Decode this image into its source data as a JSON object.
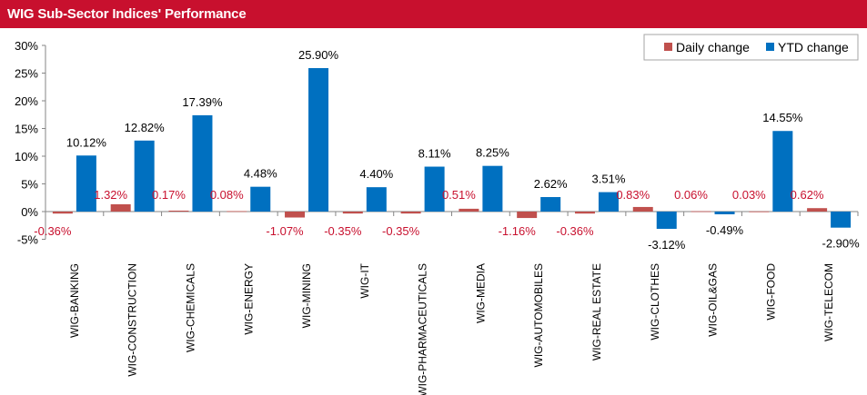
{
  "header": {
    "title": "WIG Sub-Sector Indices' Performance",
    "banner_color": "#c8102e"
  },
  "chart_data": {
    "type": "bar",
    "categories": [
      "WIG-BANKING",
      "WIG-CONSTRUCTION",
      "WIG-CHEMICALS",
      "WIG-ENERGY",
      "WIG-MINING",
      "WIG-IT",
      "WIG-PHARMACEUTICALS",
      "WIG-MEDIA",
      "WIG-AUTOMOBILES",
      "WIG-REAL ESTATE",
      "WIG-CLOTHES",
      "WIG-OIL&GAS",
      "WIG-FOOD",
      "WIG-TELECOM"
    ],
    "series": [
      {
        "name": "Daily change",
        "color": "#c0504d",
        "label_color": "#c8102e",
        "values": [
          -0.36,
          1.32,
          0.17,
          0.08,
          -1.07,
          -0.35,
          -0.35,
          0.51,
          -1.16,
          -0.36,
          0.83,
          0.06,
          0.03,
          0.62
        ],
        "labels": [
          "-0.36%",
          "1.32%",
          "0.17%",
          "0.08%",
          "-1.07%",
          "-0.35%",
          "-0.35%",
          "0.51%",
          "-1.16%",
          "-0.36%",
          "0.83%",
          "0.06%",
          "0.03%",
          "0.62%"
        ]
      },
      {
        "name": "YTD change",
        "color": "#0070c0",
        "label_color": "#000000",
        "values": [
          10.12,
          12.82,
          17.39,
          4.48,
          25.9,
          4.4,
          8.11,
          8.25,
          2.62,
          3.51,
          -3.12,
          -0.49,
          14.55,
          -2.9
        ],
        "labels": [
          "10.12%",
          "12.82%",
          "17.39%",
          "4.48%",
          "25.90%",
          "4.40%",
          "8.11%",
          "8.25%",
          "2.62%",
          "3.51%",
          "-3.12%",
          "-0.49%",
          "14.55%",
          "-2.90%"
        ]
      }
    ],
    "y_ticks": [
      -5,
      0,
      5,
      10,
      15,
      20,
      25,
      30
    ],
    "y_tick_labels": [
      "-5%",
      "0%",
      "5%",
      "10%",
      "15%",
      "20%",
      "25%",
      "30%"
    ],
    "ylim": [
      -5,
      30
    ],
    "grid": false,
    "legend_position": "top-right"
  }
}
